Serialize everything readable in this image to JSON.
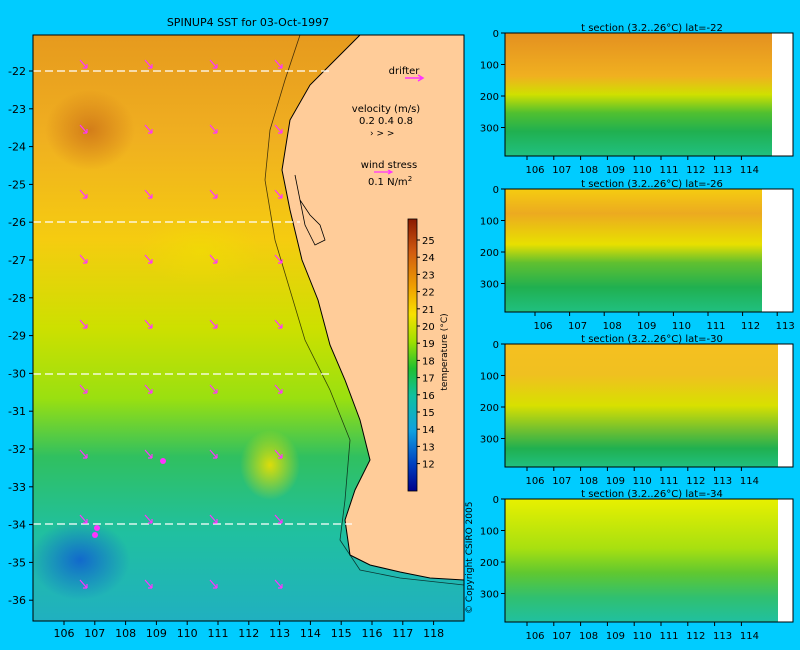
{
  "colors": {
    "background": "#00ccff",
    "land": "#ffcc99",
    "vectors": "#ff33ff",
    "coast": "#000000",
    "section_missing": "#ffffff"
  },
  "map": {
    "title": "SPINUP4 SST for 03-Oct-1997",
    "xticks": [
      "106",
      "107",
      "108",
      "109",
      "110",
      "111",
      "112",
      "113",
      "114",
      "115",
      "116",
      "117",
      "118"
    ],
    "yticks": [
      "-22",
      "-23",
      "-24",
      "-25",
      "-26",
      "-27",
      "-28",
      "-29",
      "-30",
      "-31",
      "-32",
      "-33",
      "-34",
      "-35",
      "-36"
    ],
    "drifter_label": "drifter",
    "velocity_label": "velocity (m/s)",
    "velocity_scale": "0.2 0.4 0.8",
    "wind_label": "wind stress",
    "wind_scale": "0.1 N/m",
    "wind_scale_exp": "2",
    "section_lines": [
      "-22",
      "-26",
      "-30",
      "-34"
    ]
  },
  "colorbar": {
    "label": "temperature (°C)",
    "ticks": [
      "25",
      "24",
      "23",
      "22",
      "21",
      "20",
      "19",
      "18",
      "17",
      "16",
      "15",
      "14",
      "13",
      "12"
    ],
    "vmin": 11,
    "vmax": 26
  },
  "copyright": "© Copyright CSIRO 2005",
  "sections": [
    {
      "title": "t section (3.2..26°C) lat=-22",
      "xticks": [
        "106",
        "107",
        "108",
        "109",
        "110",
        "111",
        "112",
        "113",
        "114"
      ],
      "yticks": [
        "0",
        "100",
        "200",
        "300"
      ]
    },
    {
      "title": "t section (3.2..26°C) lat=-26",
      "xticks": [
        "106",
        "107",
        "108",
        "109",
        "110",
        "111",
        "112",
        "113"
      ],
      "yticks": [
        "0",
        "100",
        "200",
        "300"
      ]
    },
    {
      "title": "t section (3.2..26°C) lat=-30",
      "xticks": [
        "106",
        "107",
        "108",
        "109",
        "110",
        "111",
        "112",
        "113",
        "114"
      ],
      "yticks": [
        "0",
        "100",
        "200",
        "300"
      ]
    },
    {
      "title": "t section (3.2..26°C) lat=-34",
      "xticks": [
        "106",
        "107",
        "108",
        "109",
        "110",
        "111",
        "112",
        "113",
        "114"
      ],
      "yticks": [
        "0",
        "100",
        "200",
        "300"
      ]
    }
  ],
  "chart_data": [
    {
      "type": "heatmap",
      "title": "SPINUP4 SST for 03-Oct-1997",
      "xlabel": "",
      "ylabel": "",
      "xlim": [
        105.3,
        118.2
      ],
      "ylim": [
        -36.6,
        -21.1
      ],
      "series": [
        {
          "name": "",
          "values": [
            {
              "lat": -22,
              "sst": 24.5
            },
            {
              "lat": -24,
              "sst": 23.5
            },
            {
              "lat": -26,
              "sst": 22.5
            },
            {
              "lat": -28,
              "sst": 21.5
            },
            {
              "lat": -30,
              "sst": 20.5
            },
            {
              "lat": -32,
              "sst": 19.0
            },
            {
              "lat": -34,
              "sst": 18.0
            },
            {
              "lat": -36,
              "sst": 17.0
            }
          ]
        }
      ]
    },
    {
      "type": "heatmap",
      "title": "t section (3.2..26°C) lat=-22",
      "xlim": [
        105.3,
        114.7
      ],
      "ylim": [
        390,
        0
      ],
      "y": [
        0,
        100,
        200,
        300
      ],
      "values": [
        24.5,
        23.5,
        21.5,
        18.5
      ]
    },
    {
      "type": "heatmap",
      "title": "t section (3.2..26°C) lat=-26",
      "xlim": [
        105.3,
        113.3
      ],
      "ylim": [
        390,
        0
      ],
      "y": [
        0,
        100,
        200,
        300
      ],
      "values": [
        23.5,
        22.5,
        20.5,
        18.0
      ]
    },
    {
      "type": "heatmap",
      "title": "t section (3.2..26°C) lat=-30",
      "xlim": [
        105.3,
        114.7
      ],
      "ylim": [
        390,
        0
      ],
      "y": [
        0,
        100,
        200,
        300
      ],
      "values": [
        22.5,
        21.5,
        20.0,
        18.0
      ]
    },
    {
      "type": "heatmap",
      "title": "t section (3.2..26°C) lat=-34",
      "xlim": [
        105.3,
        114.7
      ],
      "ylim": [
        390,
        0
      ],
      "y": [
        0,
        100,
        200,
        300
      ],
      "values": [
        20.5,
        20.0,
        19.5,
        17.5
      ]
    }
  ]
}
